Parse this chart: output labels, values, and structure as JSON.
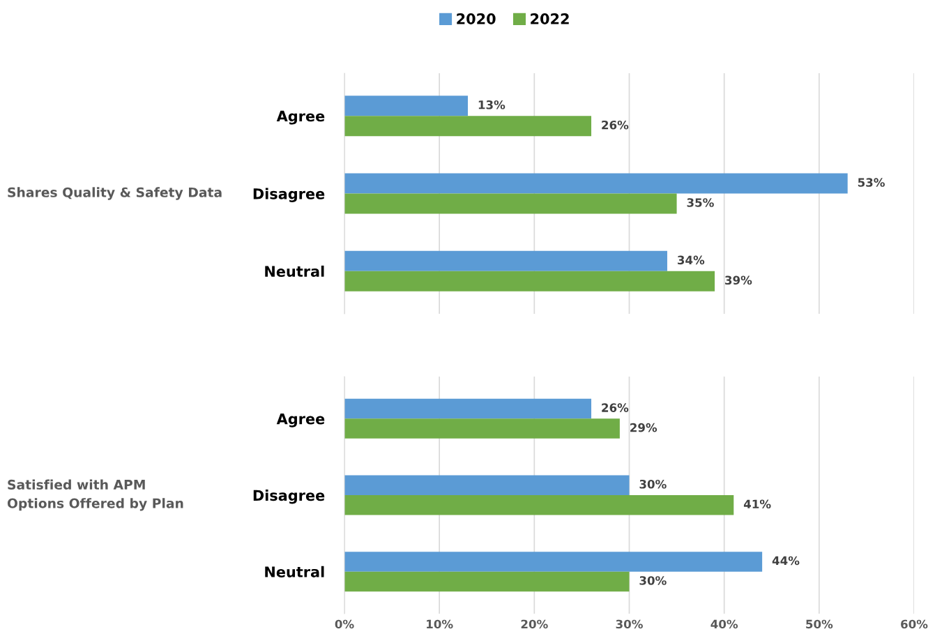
{
  "chart_data": [
    {
      "type": "bar",
      "orientation": "horizontal",
      "ylabel": "Shares Quality & Safety Data",
      "categories": [
        "Agree",
        "Disagree",
        "Neutral"
      ],
      "series": [
        {
          "name": "2020",
          "color": "#5b9bd5",
          "values": [
            13,
            53,
            34
          ],
          "value_labels": [
            "13%",
            "53%",
            "34%"
          ]
        },
        {
          "name": "2022",
          "color": "#70ad47",
          "values": [
            26,
            35,
            39
          ],
          "value_labels": [
            "26%",
            "35%",
            "39%"
          ]
        }
      ],
      "xlim": [
        0,
        60
      ],
      "xticks": [
        {
          "value": 0,
          "label": null
        },
        {
          "value": 10,
          "label": null
        },
        {
          "value": 20,
          "label": null
        },
        {
          "value": 30,
          "label": null
        },
        {
          "value": 40,
          "label": null
        },
        {
          "value": 50,
          "label": null
        },
        {
          "value": 60,
          "label": null
        }
      ],
      "grid": "x",
      "legend": "top",
      "tick_labels": "y"
    },
    {
      "type": "bar",
      "orientation": "horizontal",
      "ylabel": "Satisfied with APM\nOptions Offered by Plan",
      "categories": [
        "Agree",
        "Disagree",
        "Neutral"
      ],
      "series": [
        {
          "name": "2020",
          "color": "#5b9bd5",
          "values": [
            26,
            30,
            44
          ],
          "value_labels": [
            "26%",
            "30%",
            "44%"
          ]
        },
        {
          "name": "2022",
          "color": "#70ad47",
          "values": [
            29,
            41,
            30
          ],
          "value_labels": [
            "29%",
            "41%",
            "30%"
          ]
        }
      ],
      "xlim": [
        0,
        60
      ],
      "xticks": [
        {
          "value": 0,
          "label": "0%"
        },
        {
          "value": 10,
          "label": "10%"
        },
        {
          "value": 20,
          "label": "20%"
        },
        {
          "value": 30,
          "label": "30%"
        },
        {
          "value": 40,
          "label": "40%"
        },
        {
          "value": 50,
          "label": "50%"
        },
        {
          "value": 60,
          "label": "60%"
        }
      ],
      "grid": "x"
    }
  ]
}
